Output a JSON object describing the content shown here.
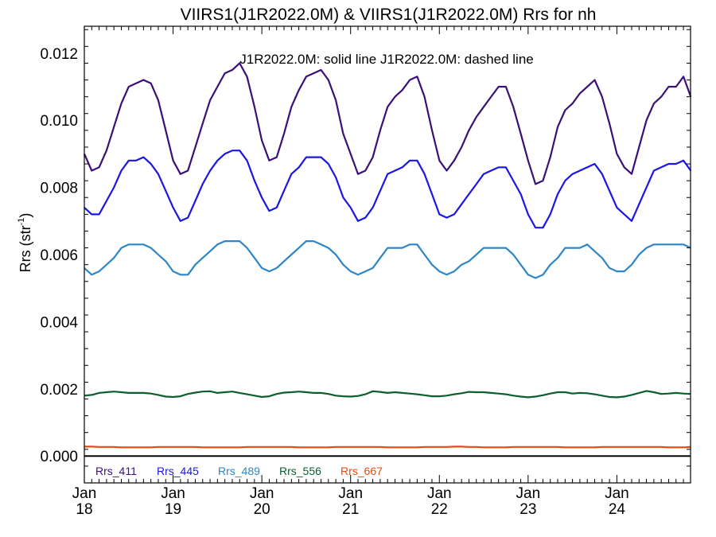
{
  "chart_data": {
    "type": "line",
    "title": "VIIRS1(J1R2022.0M) & VIIRS1(J1R2022.0M)  Rrs for nh",
    "subtitle": "J1R2022.0M: solid line   J1R2022.0M: dashed line",
    "ylabel_main": "Rrs (str",
    "ylabel_sup": "-1",
    "ylabel_close": ")",
    "xlabel": "",
    "xlim": [
      2018.0,
      2024.83
    ],
    "ylim": [
      -0.0008,
      0.0128
    ],
    "grid": false,
    "legend_position": "bottom-left",
    "x_ticks": [
      {
        "value": 2018,
        "month": "Jan",
        "year": "18"
      },
      {
        "value": 2019,
        "month": "Jan",
        "year": "19"
      },
      {
        "value": 2020,
        "month": "Jan",
        "year": "20"
      },
      {
        "value": 2021,
        "month": "Jan",
        "year": "21"
      },
      {
        "value": 2022,
        "month": "Jan",
        "year": "22"
      },
      {
        "value": 2023,
        "month": "Jan",
        "year": "23"
      },
      {
        "value": 2024,
        "month": "Jan",
        "year": "24"
      }
    ],
    "y_ticks": [
      {
        "value": 0.0,
        "label": "0.000"
      },
      {
        "value": 0.002,
        "label": "0.002"
      },
      {
        "value": 0.004,
        "label": "0.004"
      },
      {
        "value": 0.006,
        "label": "0.006"
      },
      {
        "value": 0.008,
        "label": "0.008"
      },
      {
        "value": 0.01,
        "label": "0.010"
      },
      {
        "value": 0.012,
        "label": "0.012"
      }
    ],
    "x": [
      2018.0,
      2018.083,
      2018.167,
      2018.25,
      2018.333,
      2018.417,
      2018.5,
      2018.583,
      2018.667,
      2018.75,
      2018.833,
      2018.917,
      2019.0,
      2019.083,
      2019.167,
      2019.25,
      2019.333,
      2019.417,
      2019.5,
      2019.583,
      2019.667,
      2019.75,
      2019.833,
      2019.917,
      2020.0,
      2020.083,
      2020.167,
      2020.25,
      2020.333,
      2020.417,
      2020.5,
      2020.583,
      2020.667,
      2020.75,
      2020.833,
      2020.917,
      2021.0,
      2021.083,
      2021.167,
      2021.25,
      2021.333,
      2021.417,
      2021.5,
      2021.583,
      2021.667,
      2021.75,
      2021.833,
      2021.917,
      2022.0,
      2022.083,
      2022.167,
      2022.25,
      2022.333,
      2022.417,
      2022.5,
      2022.583,
      2022.667,
      2022.75,
      2022.833,
      2022.917,
      2023.0,
      2023.083,
      2023.167,
      2023.25,
      2023.333,
      2023.417,
      2023.5,
      2023.583,
      2023.667,
      2023.75,
      2023.833,
      2023.917,
      2024.0,
      2024.083,
      2024.167,
      2024.25,
      2024.333,
      2024.417,
      2024.5,
      2024.583,
      2024.667,
      2024.75,
      2024.833
    ],
    "series": [
      {
        "name": "Rrs_411",
        "color": "#3a1078",
        "values": [
          0.009,
          0.0085,
          0.0086,
          0.0091,
          0.0098,
          0.0105,
          0.011,
          0.0111,
          0.0112,
          0.0111,
          0.0106,
          0.0097,
          0.0088,
          0.0084,
          0.0085,
          0.0092,
          0.0099,
          0.0106,
          0.011,
          0.0114,
          0.0115,
          0.0117,
          0.0113,
          0.0104,
          0.0094,
          0.0088,
          0.0089,
          0.0096,
          0.0104,
          0.0109,
          0.0113,
          0.0114,
          0.0115,
          0.0112,
          0.0106,
          0.0096,
          0.009,
          0.0084,
          0.0085,
          0.0089,
          0.0097,
          0.0104,
          0.0107,
          0.0109,
          0.0112,
          0.0113,
          0.0107,
          0.0097,
          0.0088,
          0.0085,
          0.0088,
          0.0092,
          0.0097,
          0.0101,
          0.0104,
          0.0107,
          0.011,
          0.011,
          0.0104,
          0.0096,
          0.0088,
          0.0081,
          0.0082,
          0.0089,
          0.0098,
          0.0103,
          0.0105,
          0.0108,
          0.011,
          0.0112,
          0.0107,
          0.0099,
          0.009,
          0.0086,
          0.0084,
          0.0092,
          0.01,
          0.0105,
          0.0107,
          0.011,
          0.011,
          0.0113,
          0.0107
        ]
      },
      {
        "name": "Rrs_445",
        "color": "#1a16e6",
        "values": [
          0.0074,
          0.0072,
          0.0072,
          0.0076,
          0.008,
          0.0085,
          0.0088,
          0.0088,
          0.0089,
          0.0087,
          0.0084,
          0.0079,
          0.0074,
          0.007,
          0.0071,
          0.0076,
          0.0081,
          0.0085,
          0.0088,
          0.009,
          0.0091,
          0.0091,
          0.0088,
          0.0082,
          0.0077,
          0.0073,
          0.0074,
          0.0079,
          0.0084,
          0.0086,
          0.0089,
          0.0089,
          0.0089,
          0.0087,
          0.0083,
          0.0077,
          0.0074,
          0.007,
          0.0071,
          0.0074,
          0.0079,
          0.0084,
          0.0085,
          0.0086,
          0.0088,
          0.0088,
          0.0084,
          0.0078,
          0.0072,
          0.0071,
          0.0072,
          0.0075,
          0.0078,
          0.0081,
          0.0084,
          0.0085,
          0.0086,
          0.0086,
          0.0082,
          0.0078,
          0.0072,
          0.0068,
          0.0068,
          0.0072,
          0.0078,
          0.0082,
          0.0084,
          0.0085,
          0.0086,
          0.0087,
          0.0084,
          0.0079,
          0.0074,
          0.0072,
          0.007,
          0.0075,
          0.008,
          0.0085,
          0.0086,
          0.0087,
          0.0087,
          0.0088,
          0.0085
        ]
      },
      {
        "name": "Rrs_489",
        "color": "#2c86c7",
        "values": [
          0.0056,
          0.0054,
          0.0055,
          0.0057,
          0.0059,
          0.0062,
          0.0063,
          0.0063,
          0.0063,
          0.0062,
          0.006,
          0.0058,
          0.0055,
          0.0054,
          0.0054,
          0.0057,
          0.0059,
          0.0061,
          0.0063,
          0.0064,
          0.0064,
          0.0064,
          0.0062,
          0.0059,
          0.0056,
          0.0055,
          0.0056,
          0.0058,
          0.006,
          0.0062,
          0.0064,
          0.0064,
          0.0063,
          0.0062,
          0.006,
          0.0057,
          0.0055,
          0.0054,
          0.0055,
          0.0056,
          0.0059,
          0.0062,
          0.0062,
          0.0062,
          0.0063,
          0.0063,
          0.006,
          0.0057,
          0.0055,
          0.0054,
          0.0055,
          0.0057,
          0.0058,
          0.006,
          0.0062,
          0.0062,
          0.0062,
          0.0062,
          0.006,
          0.0057,
          0.0054,
          0.0053,
          0.0054,
          0.0057,
          0.0059,
          0.0062,
          0.0062,
          0.0062,
          0.0063,
          0.0061,
          0.0059,
          0.0056,
          0.0055,
          0.0055,
          0.0057,
          0.006,
          0.0062,
          0.0063,
          0.0063,
          0.0063,
          0.0063,
          0.0063,
          0.0062
        ]
      },
      {
        "name": "Rrs_556",
        "color": "#0b5e2e",
        "values": [
          0.0018,
          0.00182,
          0.00188,
          0.0019,
          0.00192,
          0.0019,
          0.00188,
          0.00188,
          0.00188,
          0.00186,
          0.00182,
          0.00177,
          0.00176,
          0.00178,
          0.00185,
          0.00189,
          0.00192,
          0.00193,
          0.00188,
          0.0019,
          0.00192,
          0.00188,
          0.00184,
          0.0018,
          0.00176,
          0.00178,
          0.00185,
          0.00189,
          0.0019,
          0.00192,
          0.0019,
          0.00188,
          0.00188,
          0.00185,
          0.0018,
          0.00178,
          0.00177,
          0.00179,
          0.00184,
          0.00193,
          0.00191,
          0.00188,
          0.0019,
          0.00188,
          0.00186,
          0.00184,
          0.00181,
          0.00178,
          0.00178,
          0.0018,
          0.00184,
          0.00187,
          0.00191,
          0.0019,
          0.0019,
          0.00188,
          0.00186,
          0.00184,
          0.0018,
          0.00177,
          0.00175,
          0.00177,
          0.00181,
          0.00186,
          0.0019,
          0.0019,
          0.00186,
          0.00188,
          0.00187,
          0.00184,
          0.0018,
          0.00176,
          0.00175,
          0.00177,
          0.00182,
          0.00188,
          0.00194,
          0.0019,
          0.00185,
          0.00186,
          0.00188,
          0.00186,
          0.00185
        ]
      },
      {
        "name": "Rrs_667",
        "color": "#e64a0f",
        "values": [
          0.00028,
          0.00028,
          0.00027,
          0.00027,
          0.00027,
          0.00026,
          0.00026,
          0.00026,
          0.00026,
          0.00026,
          0.00027,
          0.00027,
          0.00027,
          0.00027,
          0.00027,
          0.00027,
          0.00026,
          0.00026,
          0.00026,
          0.00026,
          0.00026,
          0.00026,
          0.00027,
          0.00027,
          0.00027,
          0.00027,
          0.00027,
          0.00027,
          0.00027,
          0.00026,
          0.00026,
          0.00026,
          0.00026,
          0.00026,
          0.00027,
          0.00027,
          0.00027,
          0.00027,
          0.00027,
          0.00027,
          0.00027,
          0.00026,
          0.00026,
          0.00026,
          0.00026,
          0.00026,
          0.00027,
          0.00027,
          0.00027,
          0.00027,
          0.00028,
          0.00028,
          0.00027,
          0.00027,
          0.00026,
          0.00026,
          0.00026,
          0.00026,
          0.00027,
          0.00027,
          0.00027,
          0.00027,
          0.00027,
          0.00027,
          0.00027,
          0.00026,
          0.00026,
          0.00026,
          0.00026,
          0.00026,
          0.00027,
          0.00027,
          0.00027,
          0.00027,
          0.00027,
          0.00027,
          0.00027,
          0.00027,
          0.00027,
          0.00026,
          0.00026,
          0.00026,
          0.00027
        ]
      }
    ],
    "zero_line": 0.0
  }
}
